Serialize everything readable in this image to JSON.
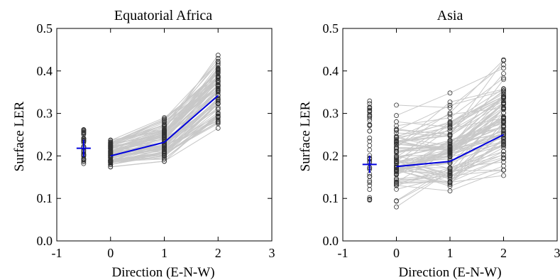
{
  "chart_data": [
    {
      "type": "scatter",
      "title": "Equatorial Africa",
      "xlabel": "Direction (E-N-W)",
      "ylabel": "Surface LER",
      "xlim": [
        -1,
        3
      ],
      "ylim": [
        0.0,
        0.5
      ],
      "xticks": [
        "-1",
        "0",
        "1",
        "2",
        "3"
      ],
      "yticks": [
        "0.0",
        "0.1",
        "0.2",
        "0.3",
        "0.4",
        "0.5"
      ],
      "grid": false,
      "individual_color": "#c8c8c8",
      "mean_color": "#0000dd",
      "x": [
        0,
        1,
        2
      ],
      "mean": [
        0.2,
        0.232,
        0.342
      ],
      "overall": {
        "x": -0.5,
        "mean": 0.218,
        "min": 0.182,
        "max": 0.262
      },
      "ranges": [
        {
          "x": 0,
          "min": 0.17,
          "max": 0.24
        },
        {
          "x": 1,
          "min": 0.18,
          "max": 0.29
        },
        {
          "x": 2,
          "min": 0.26,
          "max": 0.44
        }
      ]
    },
    {
      "type": "scatter",
      "title": "Asia",
      "xlabel": "Direction (E-N-W)",
      "ylabel": "Surface LER",
      "xlim": [
        -1,
        3
      ],
      "ylim": [
        0.0,
        0.5
      ],
      "xticks": [
        "-1",
        "0",
        "1",
        "2",
        "3"
      ],
      "yticks": [
        "0.0",
        "0.1",
        "0.2",
        "0.3",
        "0.4",
        "0.5"
      ],
      "grid": false,
      "individual_color": "#c8c8c8",
      "mean_color": "#0000dd",
      "x": [
        0,
        1,
        2
      ],
      "mean": [
        0.175,
        0.187,
        0.25
      ],
      "overall": {
        "x": -0.5,
        "mean": 0.18,
        "min": 0.095,
        "max": 0.33
      },
      "ranges": [
        {
          "x": 0,
          "min": 0.08,
          "max": 0.33
        },
        {
          "x": 1,
          "min": 0.1,
          "max": 0.35
        },
        {
          "x": 2,
          "min": 0.145,
          "max": 0.47
        }
      ]
    }
  ]
}
